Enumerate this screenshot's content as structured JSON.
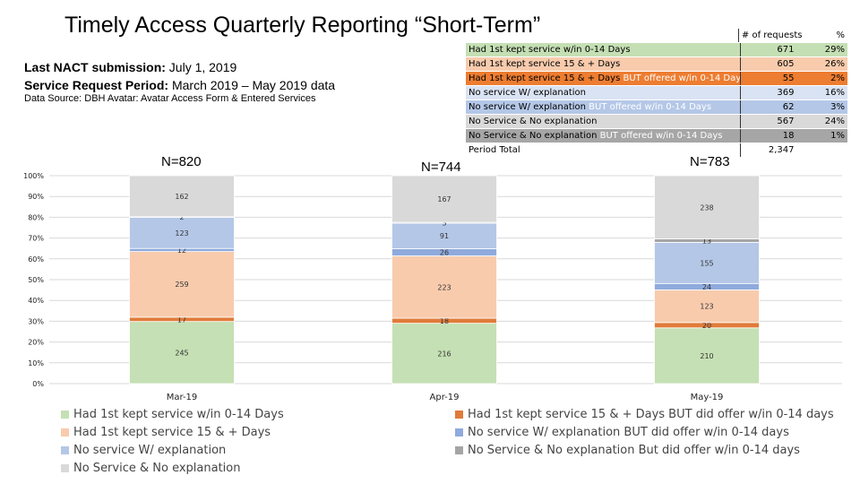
{
  "title": "Timely Access Quarterly Reporting  “Short-Term”",
  "info": {
    "nact_label": "Last NACT submission:",
    "nact_value": "July 1, 2019",
    "period_label": "Service Request Period:",
    "period_value": "March 2019 – May 2019 data",
    "source": "Data Source: DBH Avatar:  Avatar Access Form & Entered Services"
  },
  "summary_table": {
    "headers": [
      "",
      "# of requests",
      "%"
    ],
    "rows": [
      {
        "label": "Had 1st kept service w/in 0-14 Days",
        "extra": "",
        "count": "671",
        "pct": "29%",
        "bg": "#c5dfb4",
        "color": "#000"
      },
      {
        "label": "Had 1st kept service 15 & + Days",
        "extra": "",
        "count": "605",
        "pct": "26%",
        "bg": "#f8cbad",
        "color": "#000"
      },
      {
        "label": "Had 1st kept service 15 & + Days",
        "extra": "BUT offered w/in 0-14 Days",
        "count": "55",
        "pct": "2%",
        "bg": "#ed7d31",
        "color": "#000"
      },
      {
        "label": "No service W/ explanation",
        "extra": "",
        "count": "369",
        "pct": "16%",
        "bg": "#dae3f3",
        "color": "#000"
      },
      {
        "label": "No service W/ explanation",
        "extra": "BUT offered w/in 0-14 Days",
        "count": "62",
        "pct": "3%",
        "bg": "#b4c7e7",
        "color": "#000"
      },
      {
        "label": "No Service & No explanation",
        "extra": "",
        "count": "567",
        "pct": "24%",
        "bg": "#d9d9d9",
        "color": "#000"
      },
      {
        "label": "No Service & No explanation",
        "extra": "BUT offered w/in 0-14 Days",
        "count": "18",
        "pct": "1%",
        "bg": "#a6a6a6",
        "color": "#000"
      }
    ],
    "total_label": "Period Total",
    "total_value": "2,347"
  },
  "n_labels": [
    "N=820",
    "N=744",
    "N=783"
  ],
  "chart_data": {
    "type": "bar",
    "stacked": "percent",
    "categories": [
      "Mar-19",
      "Apr-19",
      "May-19"
    ],
    "yticks": [
      "0%",
      "10%",
      "20%",
      "30%",
      "40%",
      "50%",
      "60%",
      "70%",
      "80%",
      "90%",
      "100%"
    ],
    "ylim": [
      0,
      100
    ],
    "grid": true,
    "legend": "bottom",
    "series": [
      {
        "name": "Had 1st kept service w/in 0-14 Days",
        "values": [
          245,
          216,
          210
        ],
        "color": "#c5e0b4"
      },
      {
        "name": "Had 1st kept service 15 & + Days BUT  did offer w/in 0-14 days",
        "values": [
          17,
          18,
          20
        ],
        "color": "#e07b39"
      },
      {
        "name": "Had 1st kept service 15 & + Days",
        "values": [
          259,
          223,
          123
        ],
        "color": "#f8cbad"
      },
      {
        "name": "No service W/ explanation  BUT did offer w/in 0-14 days",
        "values": [
          12,
          26,
          24
        ],
        "color": "#8faadc"
      },
      {
        "name": "No service W/ explanation",
        "values": [
          123,
          91,
          155
        ],
        "color": "#b4c7e7"
      },
      {
        "name": "No Service & No explanation  But did offer w/in 0-14 days",
        "values": [
          2,
          3,
          13
        ],
        "color": "#a5a5a5"
      },
      {
        "name": "No Service & No explanation",
        "values": [
          162,
          167,
          238
        ],
        "color": "#d9d9d9"
      }
    ]
  }
}
